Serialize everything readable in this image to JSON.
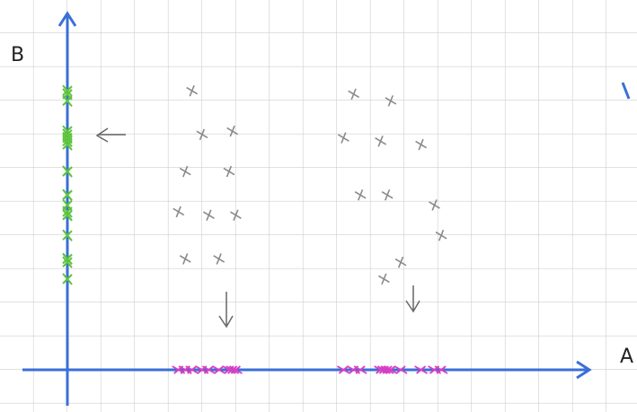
{
  "chart_data": {
    "type": "scatter",
    "x_label": "A",
    "y_label": "B",
    "x": [
      3.7,
      4.0,
      4.9,
      3.5,
      4.8,
      3.3,
      4.2,
      5.0,
      3.5,
      4.5,
      8.5,
      9.6,
      8.2,
      9.3,
      10.5,
      8.7,
      9.5,
      10.9,
      11.1,
      9.9,
      9.4
    ],
    "values": [
      8.3,
      7.0,
      7.1,
      5.9,
      5.9,
      4.7,
      4.6,
      4.6,
      3.3,
      3.3,
      8.2,
      8.0,
      6.9,
      6.8,
      6.7,
      5.2,
      5.2,
      4.9,
      4.0,
      3.2,
      2.7
    ],
    "color": "#8a8a8a",
    "xlim": [
      0,
      15.5
    ],
    "ylim": [
      0,
      10.6
    ],
    "x_projection_color": "#d63fc4",
    "y_projection_color": "#5cc43a",
    "axis_color": "#3a6fd8"
  }
}
